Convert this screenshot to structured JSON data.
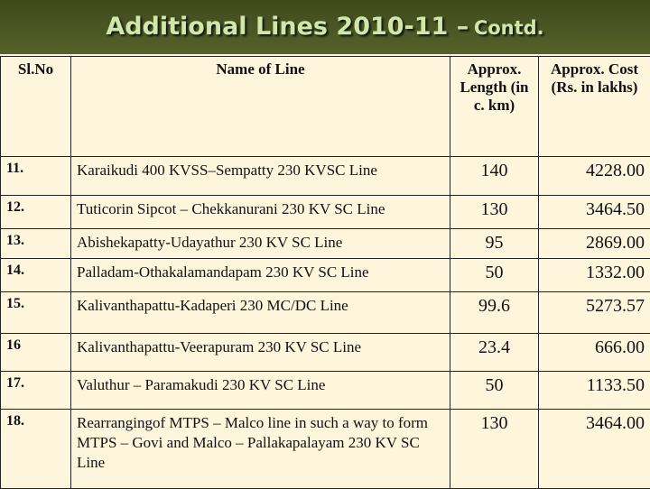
{
  "header": {
    "title": "Additional Lines 2010-11 –",
    "title_note": "Contd."
  },
  "table": {
    "columns": [
      "Sl.No",
      "Name of Line",
      "Approx. Length (in c. km)",
      "Approx. Cost (Rs. in lakhs)"
    ],
    "rows": [
      [
        "11.",
        "Karaikudi 400 KVSS–Sempatty 230 KVSC Line",
        "140",
        "4228.00"
      ],
      [
        "12.",
        "Tuticorin Sipcot – Chekkanurani 230 KV SC Line",
        "130",
        "3464.50"
      ],
      [
        "13.",
        "Abishekapatty-Udayathur 230 KV SC Line",
        "95",
        "2869.00"
      ],
      [
        "14.",
        "Palladam-Othakalamandapam 230 KV SC Line",
        "50",
        "1332.00"
      ],
      [
        "15.",
        "Kalivanthapattu-Kadaperi 230 MC/DC Line",
        "99.6",
        "5273.57"
      ],
      [
        "16",
        "Kalivanthapattu-Veerapuram 230 KV SC Line",
        "23.4",
        "666.00"
      ],
      [
        "17.",
        "Valuthur – Paramakudi 230 KV SC Line",
        "50",
        "1133.50"
      ],
      [
        "18.",
        "Rearrangingof MTPS – Malco line in such a way to form MTPS – Govi and Malco – Pallakapalayam 230 KV SC Line",
        "130",
        "3464.00"
      ]
    ]
  }
}
